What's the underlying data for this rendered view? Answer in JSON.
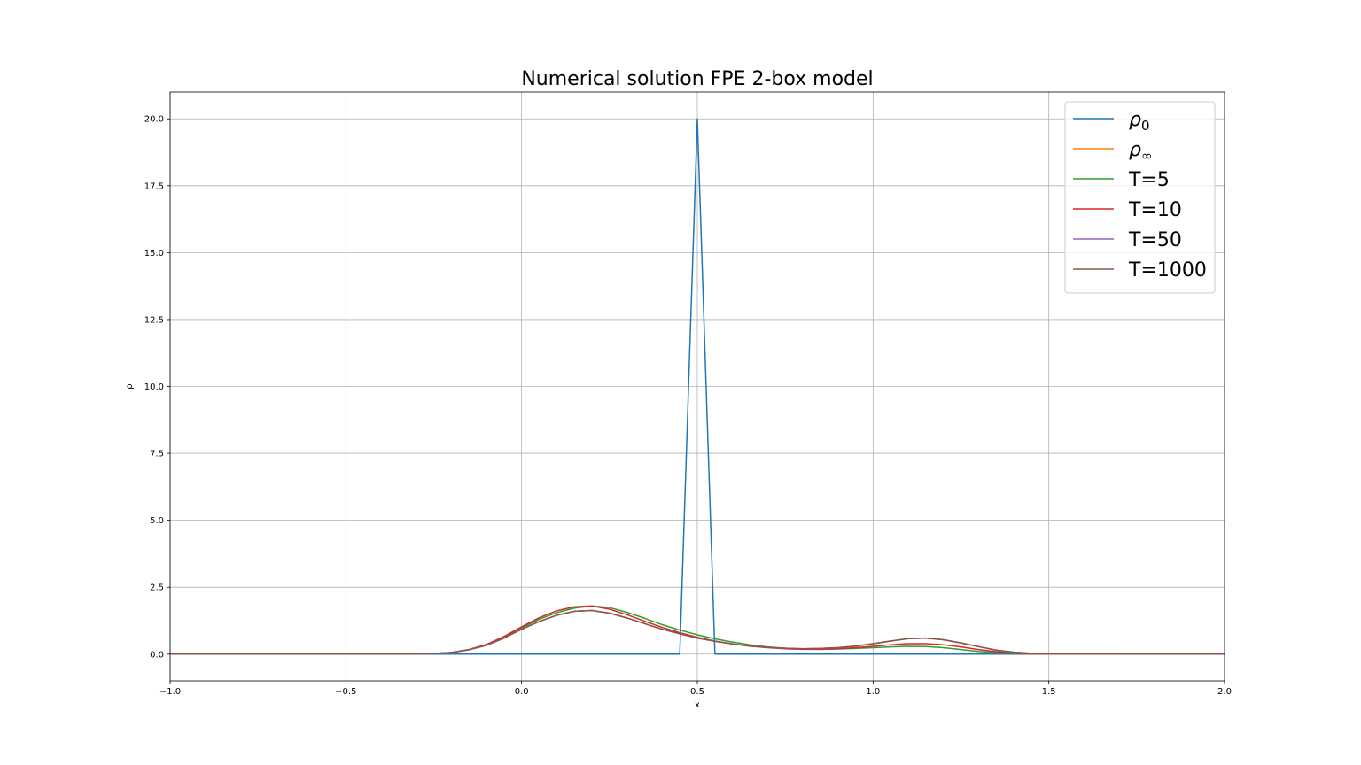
{
  "chart_data": {
    "type": "line",
    "title": "Numerical solution FPE 2-box model",
    "xlabel": "x",
    "ylabel": "ρ",
    "xlim": [
      -1.0,
      2.0
    ],
    "ylim": [
      -1.0,
      21.0
    ],
    "xticks": [
      -1.0,
      -0.5,
      0.0,
      0.5,
      1.0,
      1.5,
      2.0
    ],
    "xtick_labels": [
      "−1.0",
      "−0.5",
      "0.0",
      "0.5",
      "1.0",
      "1.5",
      "2.0"
    ],
    "yticks": [
      0.0,
      2.5,
      5.0,
      7.5,
      10.0,
      12.5,
      15.0,
      17.5,
      20.0
    ],
    "ytick_labels": [
      "0.0",
      "2.5",
      "5.0",
      "7.5",
      "10.0",
      "12.5",
      "15.0",
      "17.5",
      "20.0"
    ],
    "grid": true,
    "legend_position": "top-right",
    "series": [
      {
        "name": "ρ0",
        "legend_base": "ρ",
        "legend_sub": "0",
        "color": "#1f77b4",
        "x": [
          -1.0,
          0.45,
          0.5,
          0.55,
          2.0
        ],
        "y": [
          0.0,
          0.0,
          20.0,
          0.0,
          0.0
        ]
      },
      {
        "name": "ρ∞",
        "legend_base": "ρ",
        "legend_sub": "∞",
        "color": "#ff7f0e",
        "x": [
          -1.0,
          -0.3,
          -0.25,
          -0.2,
          -0.15,
          -0.1,
          -0.05,
          0.0,
          0.05,
          0.1,
          0.15,
          0.2,
          0.25,
          0.3,
          0.35,
          0.4,
          0.45,
          0.5,
          0.55,
          0.6,
          0.65,
          0.7,
          0.75,
          0.8,
          0.85,
          0.9,
          0.95,
          1.0,
          1.05,
          1.1,
          1.15,
          1.2,
          1.25,
          1.3,
          1.35,
          1.4,
          1.45,
          1.5,
          2.0
        ],
        "y": [
          0.0,
          0.0,
          0.02,
          0.06,
          0.16,
          0.33,
          0.6,
          0.93,
          1.22,
          1.45,
          1.6,
          1.63,
          1.53,
          1.35,
          1.14,
          0.93,
          0.76,
          0.6,
          0.48,
          0.38,
          0.3,
          0.25,
          0.22,
          0.2,
          0.21,
          0.24,
          0.3,
          0.39,
          0.49,
          0.58,
          0.6,
          0.54,
          0.42,
          0.28,
          0.15,
          0.07,
          0.03,
          0.01,
          0.0
        ]
      },
      {
        "name": "T=5",
        "legend_base": "T=5",
        "legend_sub": "",
        "color": "#2ca02c",
        "x": [
          -1.0,
          -0.3,
          -0.25,
          -0.2,
          -0.15,
          -0.1,
          -0.05,
          0.0,
          0.05,
          0.1,
          0.15,
          0.2,
          0.25,
          0.3,
          0.35,
          0.4,
          0.45,
          0.5,
          0.55,
          0.6,
          0.65,
          0.7,
          0.75,
          0.8,
          0.85,
          0.9,
          0.95,
          1.0,
          1.05,
          1.1,
          1.15,
          1.2,
          1.25,
          1.3,
          1.35,
          1.4,
          1.45,
          1.5,
          2.0
        ],
        "y": [
          0.0,
          0.0,
          0.02,
          0.06,
          0.17,
          0.35,
          0.63,
          0.98,
          1.3,
          1.55,
          1.72,
          1.8,
          1.74,
          1.56,
          1.34,
          1.1,
          0.9,
          0.72,
          0.57,
          0.45,
          0.35,
          0.27,
          0.22,
          0.19,
          0.18,
          0.19,
          0.21,
          0.24,
          0.27,
          0.29,
          0.28,
          0.24,
          0.17,
          0.1,
          0.05,
          0.02,
          0.01,
          0.0,
          0.0
        ]
      },
      {
        "name": "T=10",
        "legend_base": "T=10",
        "legend_sub": "",
        "color": "#d62728",
        "x": [
          -1.0,
          -0.3,
          -0.25,
          -0.2,
          -0.15,
          -0.1,
          -0.05,
          0.0,
          0.05,
          0.1,
          0.15,
          0.2,
          0.25,
          0.3,
          0.35,
          0.4,
          0.45,
          0.5,
          0.55,
          0.6,
          0.65,
          0.7,
          0.75,
          0.8,
          0.85,
          0.9,
          0.95,
          1.0,
          1.05,
          1.1,
          1.15,
          1.2,
          1.25,
          1.3,
          1.35,
          1.4,
          1.45,
          1.5,
          2.0
        ],
        "y": [
          0.0,
          0.0,
          0.02,
          0.06,
          0.17,
          0.36,
          0.66,
          1.02,
          1.36,
          1.62,
          1.77,
          1.8,
          1.68,
          1.47,
          1.23,
          1.0,
          0.8,
          0.63,
          0.49,
          0.38,
          0.3,
          0.24,
          0.2,
          0.18,
          0.18,
          0.2,
          0.24,
          0.29,
          0.35,
          0.39,
          0.39,
          0.35,
          0.27,
          0.17,
          0.09,
          0.04,
          0.01,
          0.0,
          0.0
        ]
      },
      {
        "name": "T=50",
        "legend_base": "T=50",
        "legend_sub": "",
        "color": "#9467bd",
        "x": [
          -1.0,
          -0.3,
          -0.25,
          -0.2,
          -0.15,
          -0.1,
          -0.05,
          0.0,
          0.05,
          0.1,
          0.15,
          0.2,
          0.25,
          0.3,
          0.35,
          0.4,
          0.45,
          0.5,
          0.55,
          0.6,
          0.65,
          0.7,
          0.75,
          0.8,
          0.85,
          0.9,
          0.95,
          1.0,
          1.05,
          1.1,
          1.15,
          1.2,
          1.25,
          1.3,
          1.35,
          1.4,
          1.45,
          1.5,
          2.0
        ],
        "y": [
          0.0,
          0.0,
          0.02,
          0.06,
          0.16,
          0.33,
          0.6,
          0.93,
          1.22,
          1.45,
          1.6,
          1.63,
          1.53,
          1.35,
          1.14,
          0.93,
          0.76,
          0.6,
          0.48,
          0.38,
          0.3,
          0.25,
          0.22,
          0.2,
          0.21,
          0.24,
          0.3,
          0.39,
          0.49,
          0.58,
          0.6,
          0.54,
          0.42,
          0.28,
          0.15,
          0.07,
          0.03,
          0.01,
          0.0
        ]
      },
      {
        "name": "T=1000",
        "legend_base": "T=1000",
        "legend_sub": "",
        "color": "#8c564b",
        "x": [
          -1.0,
          -0.3,
          -0.25,
          -0.2,
          -0.15,
          -0.1,
          -0.05,
          0.0,
          0.05,
          0.1,
          0.15,
          0.2,
          0.25,
          0.3,
          0.35,
          0.4,
          0.45,
          0.5,
          0.55,
          0.6,
          0.65,
          0.7,
          0.75,
          0.8,
          0.85,
          0.9,
          0.95,
          1.0,
          1.05,
          1.1,
          1.15,
          1.2,
          1.25,
          1.3,
          1.35,
          1.4,
          1.45,
          1.5,
          2.0
        ],
        "y": [
          0.0,
          0.0,
          0.02,
          0.06,
          0.16,
          0.33,
          0.6,
          0.93,
          1.22,
          1.45,
          1.6,
          1.63,
          1.53,
          1.35,
          1.14,
          0.93,
          0.76,
          0.6,
          0.48,
          0.38,
          0.3,
          0.25,
          0.22,
          0.2,
          0.21,
          0.24,
          0.3,
          0.39,
          0.49,
          0.58,
          0.6,
          0.54,
          0.42,
          0.28,
          0.15,
          0.07,
          0.03,
          0.01,
          0.0
        ]
      }
    ]
  }
}
